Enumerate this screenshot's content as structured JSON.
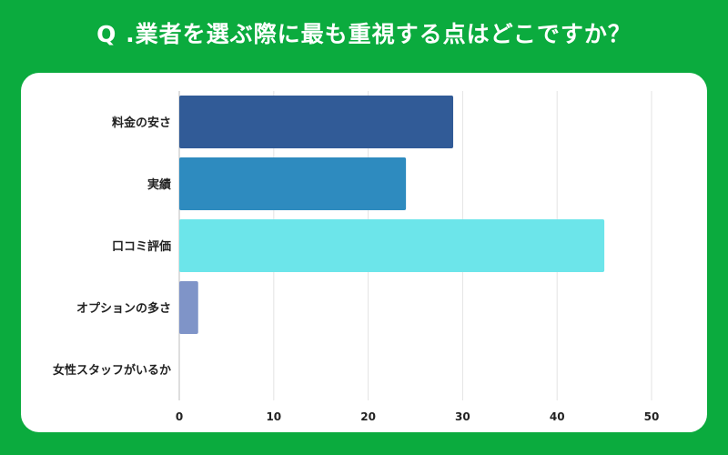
{
  "title": "Q .業者を選ぶ際に最も重視する点はどこですか？",
  "chart_data": {
    "type": "bar",
    "orientation": "horizontal",
    "categories": [
      "料金の安さ",
      "実績",
      "口コミ評価",
      "オプションの多さ",
      "女性スタッフがいるか"
    ],
    "values": [
      29,
      24,
      45,
      2,
      0
    ],
    "colors": [
      "#315b97",
      "#2e8bbf",
      "#6ce5ea",
      "#7f94c8",
      "#7f94c8"
    ],
    "xlim": [
      0,
      50
    ],
    "xticks": [
      0,
      10,
      20,
      30,
      40,
      50
    ],
    "xlabel": "",
    "ylabel": "",
    "grid": true
  }
}
